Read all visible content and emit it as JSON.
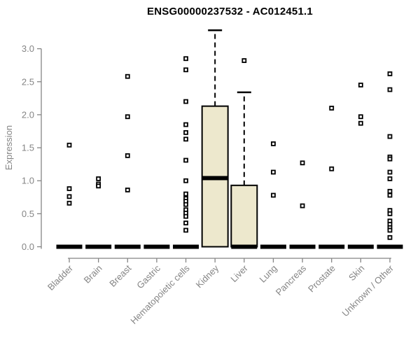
{
  "chart_data": {
    "type": "boxplot",
    "title": "ENSG00000237532 - AC012451.1",
    "ylabel": "Expression",
    "ylim": [
      0.0,
      3.3
    ],
    "yticks": [
      0.0,
      0.5,
      1.0,
      1.5,
      2.0,
      2.5,
      3.0
    ],
    "grid": false,
    "legend_position": "none",
    "categories": [
      "Bladder",
      "Brain",
      "Breast",
      "Gastric",
      "Hematopoietic cells",
      "Kidney",
      "Liver",
      "Lung",
      "Pancreas",
      "Prostate",
      "Skin",
      "Unknown / Other"
    ],
    "series": [
      {
        "name": "Bladder",
        "q1": 0,
        "median": 0,
        "q3": 0,
        "whisker_low": 0,
        "whisker_high": 0,
        "outliers": [
          1.54,
          0.88,
          0.76,
          0.66
        ]
      },
      {
        "name": "Brain",
        "q1": 0,
        "median": 0,
        "q3": 0,
        "whisker_low": 0,
        "whisker_high": 0,
        "outliers": [
          1.03,
          0.95,
          0.92
        ]
      },
      {
        "name": "Breast",
        "q1": 0,
        "median": 0,
        "q3": 0,
        "whisker_low": 0,
        "whisker_high": 0,
        "outliers": [
          2.58,
          1.97,
          1.38,
          0.86
        ]
      },
      {
        "name": "Gastric",
        "q1": 0,
        "median": 0,
        "q3": 0,
        "whisker_low": 0,
        "whisker_high": 0,
        "outliers": []
      },
      {
        "name": "Hematopoietic cells",
        "q1": 0,
        "median": 0,
        "q3": 0,
        "whisker_low": 0,
        "whisker_high": 0,
        "outliers": [
          2.85,
          2.68,
          2.2,
          1.85,
          1.73,
          1.63,
          1.31,
          1.0,
          0.8,
          0.73,
          0.69,
          0.64,
          0.56,
          0.51,
          0.46,
          0.36,
          0.25
        ]
      },
      {
        "name": "Kidney",
        "q1": 0,
        "median": 1.04,
        "q3": 2.13,
        "whisker_low": 0,
        "whisker_high": 3.28,
        "outliers": []
      },
      {
        "name": "Liver",
        "q1": 0,
        "median": 0,
        "q3": 0.93,
        "whisker_low": 0,
        "whisker_high": 2.34,
        "outliers": [
          2.82
        ]
      },
      {
        "name": "Lung",
        "q1": 0,
        "median": 0,
        "q3": 0,
        "whisker_low": 0,
        "whisker_high": 0,
        "outliers": [
          1.56,
          1.13,
          0.78
        ]
      },
      {
        "name": "Pancreas",
        "q1": 0,
        "median": 0,
        "q3": 0,
        "whisker_low": 0,
        "whisker_high": 0,
        "outliers": [
          1.27,
          0.62
        ]
      },
      {
        "name": "Prostate",
        "q1": 0,
        "median": 0,
        "q3": 0,
        "whisker_low": 0,
        "whisker_high": 0,
        "outliers": [
          2.1,
          1.18
        ]
      },
      {
        "name": "Skin",
        "q1": 0,
        "median": 0,
        "q3": 0,
        "whisker_low": 0,
        "whisker_high": 0,
        "outliers": [
          2.45,
          1.97,
          1.87
        ]
      },
      {
        "name": "Unknown / Other",
        "q1": 0,
        "median": 0,
        "q3": 0,
        "whisker_low": 0,
        "whisker_high": 0,
        "outliers": [
          2.62,
          2.38,
          1.67,
          1.36,
          1.33,
          1.13,
          1.03,
          0.84,
          0.78,
          0.55,
          0.5,
          0.39,
          0.34,
          0.29,
          0.25,
          0.14
        ]
      }
    ],
    "colors": {
      "box_fill": "#EDE8CD",
      "box_border": "#000000",
      "median": "#000000",
      "whisker": "#000000",
      "outlier": "#000000",
      "axis": "#858585",
      "title_color": "#000000"
    }
  }
}
